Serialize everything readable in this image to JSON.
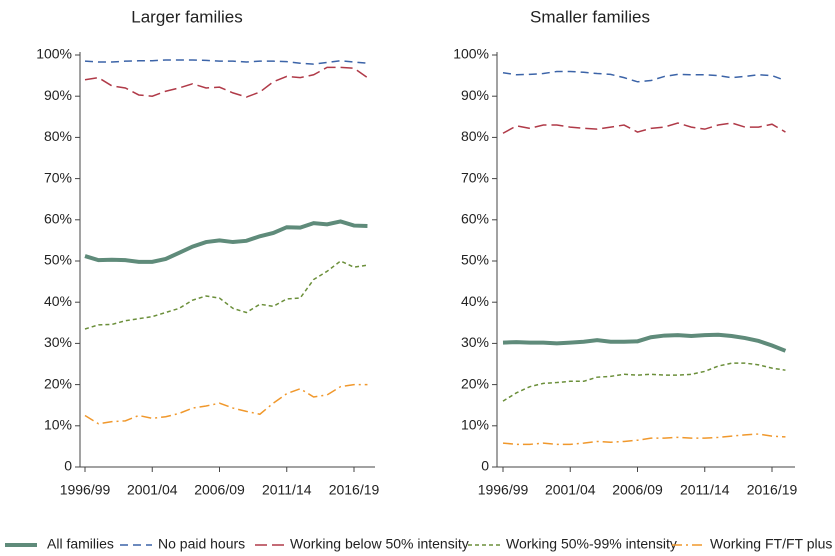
{
  "chart_data": [
    {
      "type": "line",
      "title": "Larger families",
      "categories": [
        "1996/99",
        null,
        null,
        null,
        null,
        "2001/04",
        null,
        null,
        null,
        null,
        "2006/09",
        null,
        null,
        null,
        null,
        "2011/14",
        null,
        null,
        null,
        null,
        "2016/19",
        null
      ],
      "ylim": [
        0,
        100
      ],
      "yticks": [
        0,
        {
          "value": 10,
          "label": "10%"
        },
        {
          "value": 20,
          "label": "20%"
        },
        {
          "value": 30,
          "label": "30%"
        },
        {
          "value": 40,
          "label": "40%"
        },
        {
          "value": 50,
          "label": "50%"
        },
        {
          "value": 60,
          "label": "60%"
        },
        {
          "value": 70,
          "label": "70%"
        },
        {
          "value": 80,
          "label": "80%"
        },
        {
          "value": 90,
          "label": "90%"
        },
        {
          "value": 100,
          "label": "100%"
        }
      ],
      "series": [
        {
          "name": "All families",
          "color": "#5f8b7a",
          "style": "solid",
          "values": [
            51.2,
            50.2,
            50.3,
            50.2,
            49.8,
            49.8,
            50.5,
            52,
            53.5,
            54.6,
            55,
            54.6,
            54.9,
            56,
            56.8,
            58.2,
            58.1,
            59.2,
            58.9,
            59.6,
            58.6,
            58.5
          ]
        },
        {
          "name": "No paid hours",
          "color": "#3c64a8",
          "style": "dashed",
          "values": [
            98.5,
            98.3,
            98.3,
            98.5,
            98.6,
            98.6,
            98.8,
            98.8,
            98.8,
            98.7,
            98.5,
            98.5,
            98.3,
            98.5,
            98.5,
            98.4,
            98,
            97.8,
            98.2,
            98.6,
            98.3,
            98
          ]
        },
        {
          "name": "Working below 50% intensity",
          "color": "#b03a48",
          "style": "longdash",
          "values": [
            94,
            94.5,
            92.5,
            92,
            90.3,
            90,
            91.2,
            92,
            93,
            92,
            92.2,
            90.8,
            89.8,
            91,
            93.5,
            94.8,
            94.5,
            95.2,
            97,
            97,
            96.8,
            94.5
          ]
        },
        {
          "name": "Working 50%-99% intensity",
          "color": "#6b8f3a",
          "style": "shortdash",
          "values": [
            33.5,
            34.5,
            34.6,
            35.5,
            36,
            36.5,
            37.5,
            38.5,
            40.5,
            41.5,
            41,
            38.5,
            37.5,
            39.5,
            39,
            40.8,
            41,
            45.5,
            47.5,
            50,
            48.5,
            49
          ]
        },
        {
          "name": "Working FT/FT plus",
          "color": "#f0982c",
          "style": "dashdot",
          "values": [
            12.5,
            10.5,
            11,
            11.2,
            12.5,
            11.8,
            12.2,
            13,
            14.3,
            14.8,
            15.5,
            14.3,
            13.5,
            12.8,
            15.5,
            17.8,
            19,
            17,
            17.5,
            19.5,
            20,
            20
          ]
        }
      ]
    },
    {
      "type": "line",
      "title": "Smaller families",
      "categories": [
        "1996/99",
        null,
        null,
        null,
        null,
        "2001/04",
        null,
        null,
        null,
        null,
        "2006/09",
        null,
        null,
        null,
        null,
        "2011/14",
        null,
        null,
        null,
        null,
        "2016/19",
        null
      ],
      "ylim": [
        0,
        100
      ],
      "yticks": [
        0,
        {
          "value": 10,
          "label": "10%"
        },
        {
          "value": 20,
          "label": "20%"
        },
        {
          "value": 30,
          "label": "30%"
        },
        {
          "value": 40,
          "label": "40%"
        },
        {
          "value": 50,
          "label": "50%"
        },
        {
          "value": 60,
          "label": "60%"
        },
        {
          "value": 70,
          "label": "70%"
        },
        {
          "value": 80,
          "label": "80%"
        },
        {
          "value": 90,
          "label": "90%"
        },
        {
          "value": 100,
          "label": "100%"
        }
      ],
      "series": [
        {
          "color": "#5f8b7a",
          "style": "solid",
          "values": [
            30.2,
            30.3,
            30.2,
            30.2,
            30,
            30.2,
            30.4,
            30.8,
            30.4,
            30.4,
            30.5,
            31.5,
            31.9,
            32,
            31.8,
            32,
            32.1,
            31.8,
            31.3,
            30.6,
            29.5,
            28.2
          ]
        },
        {
          "color": "#3c64a8",
          "style": "dashed",
          "values": [
            95.7,
            95.2,
            95.3,
            95.5,
            96,
            96,
            95.8,
            95.5,
            95.3,
            94.5,
            93.5,
            93.8,
            94.8,
            95.3,
            95.2,
            95.2,
            95,
            94.5,
            94.8,
            95.2,
            95,
            93.8
          ]
        },
        {
          "color": "#b03a48",
          "style": "longdash",
          "values": [
            81,
            82.8,
            82.2,
            83,
            83,
            82.5,
            82.2,
            82,
            82.5,
            83,
            81.3,
            82.2,
            82.5,
            83.5,
            82.5,
            82,
            83,
            83.5,
            82.5,
            82.5,
            83.2,
            81.3
          ]
        },
        {
          "color": "#6b8f3a",
          "style": "shortdash",
          "values": [
            16,
            18,
            19.5,
            20.3,
            20.5,
            20.8,
            20.8,
            21.8,
            22,
            22.5,
            22.3,
            22.5,
            22.3,
            22.3,
            22.5,
            23.2,
            24.5,
            25.2,
            25.2,
            24.8,
            24,
            23.5
          ]
        },
        {
          "color": "#f0982c",
          "style": "dashdot",
          "values": [
            5.8,
            5.5,
            5.5,
            5.8,
            5.5,
            5.5,
            5.8,
            6.2,
            6,
            6.2,
            6.5,
            7,
            7,
            7.2,
            7,
            7,
            7.2,
            7.5,
            7.8,
            8,
            7.5,
            7.3
          ]
        }
      ]
    }
  ]
}
